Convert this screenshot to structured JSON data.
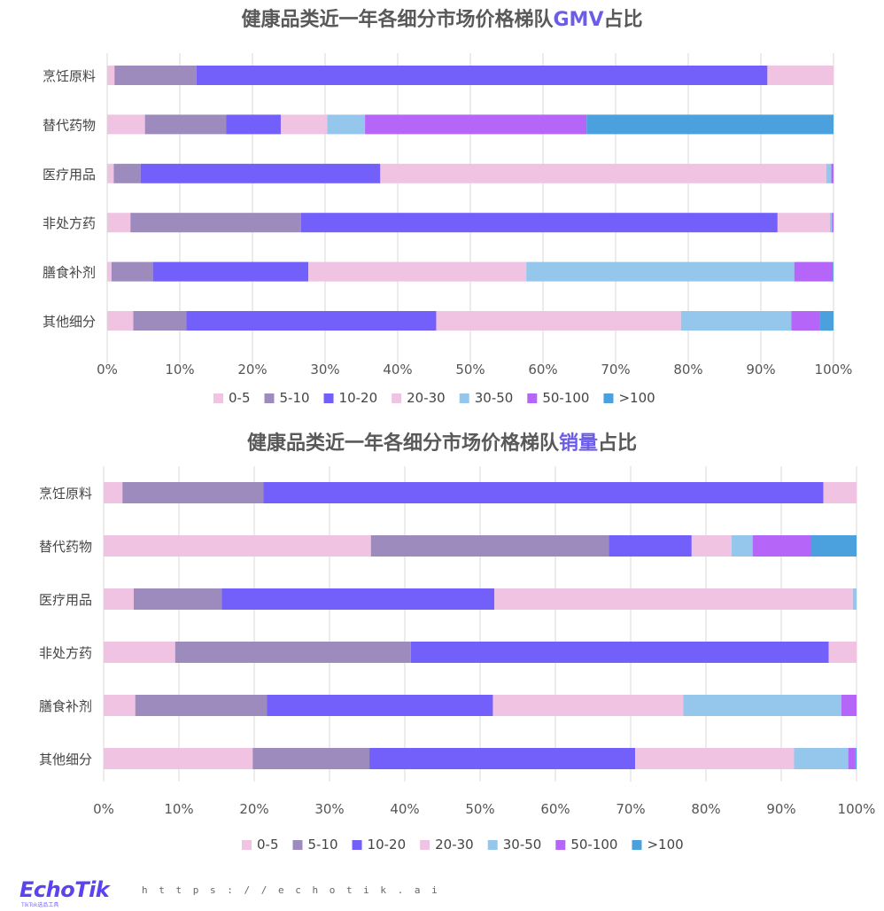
{
  "footer": {
    "brand": "EchoTik",
    "brand_sub": "TikTok选品工具",
    "url": "h t t p s : / / e c h o t i k . a i"
  },
  "chart_data": [
    {
      "type": "bar",
      "orientation": "horizontal",
      "stacked": "percent",
      "title_prefix": "健康品类近一年各细分市场价格梯队",
      "title_highlight": "GMV",
      "title_suffix": "占比",
      "categories": [
        "烹饪原料",
        "替代药物",
        "医疗用品",
        "非处方药",
        "膳食补剂",
        "其他细分"
      ],
      "series": [
        {
          "name": "0-5",
          "color": "#f0c3e3",
          "values": [
            1.0,
            5.2,
            0.9,
            3.2,
            0.6,
            3.6
          ]
        },
        {
          "name": "5-10",
          "color": "#9e8bbd",
          "values": [
            11.3,
            11.2,
            3.7,
            23.5,
            5.7,
            7.3
          ]
        },
        {
          "name": "10-20",
          "color": "#7360fb",
          "values": [
            78.6,
            7.5,
            33.0,
            65.6,
            21.4,
            34.4
          ]
        },
        {
          "name": "20-30",
          "color": "#f0c3e3",
          "values": [
            9.1,
            6.4,
            61.4,
            7.2,
            30.0,
            33.7
          ]
        },
        {
          "name": "30-50",
          "color": "#95c7ec",
          "values": [
            0,
            5.2,
            0.7,
            0.3,
            36.9,
            15.2
          ]
        },
        {
          "name": "50-100",
          "color": "#b565f7",
          "values": [
            0,
            30.5,
            0.3,
            0.2,
            5.3,
            3.9
          ]
        },
        {
          "name": ">100",
          "color": "#4aa1dd",
          "values": [
            0,
            34.0,
            0,
            0,
            0.1,
            1.9
          ]
        }
      ],
      "xlim": [
        0,
        100
      ],
      "xticks": [
        "0%",
        "10%",
        "20%",
        "30%",
        "40%",
        "50%",
        "60%",
        "70%",
        "80%",
        "90%",
        "100%"
      ],
      "grid": true,
      "legend": "bottom"
    },
    {
      "type": "bar",
      "orientation": "horizontal",
      "stacked": "percent",
      "title_prefix": "健康品类近一年各细分市场价格梯队",
      "title_highlight": "销量",
      "title_suffix": "占比",
      "categories": [
        "烹饪原料",
        "替代药物",
        "医疗用品",
        "非处方药",
        "膳食补剂",
        "其他细分"
      ],
      "series": [
        {
          "name": "0-5",
          "color": "#f0c3e3",
          "values": [
            2.5,
            35.5,
            4.0,
            9.5,
            4.2,
            19.8
          ]
        },
        {
          "name": "5-10",
          "color": "#9e8bbd",
          "values": [
            18.7,
            31.6,
            11.7,
            31.3,
            17.5,
            15.5
          ]
        },
        {
          "name": "10-20",
          "color": "#7360fb",
          "values": [
            74.4,
            11.0,
            36.2,
            55.5,
            30.0,
            35.3
          ]
        },
        {
          "name": "20-30",
          "color": "#f0c3e3",
          "values": [
            4.4,
            5.3,
            47.6,
            3.7,
            25.3,
            21.1
          ]
        },
        {
          "name": "30-50",
          "color": "#95c7ec",
          "values": [
            0,
            2.8,
            0.5,
            0,
            21.0,
            7.2
          ]
        },
        {
          "name": "50-100",
          "color": "#b565f7",
          "values": [
            0,
            7.8,
            0,
            0,
            2.0,
            0.9
          ]
        },
        {
          "name": ">100",
          "color": "#4aa1dd",
          "values": [
            0,
            6.0,
            0,
            0,
            0,
            0.2
          ]
        }
      ],
      "xlim": [
        0,
        100
      ],
      "xticks": [
        "0%",
        "10%",
        "20%",
        "30%",
        "40%",
        "50%",
        "60%",
        "70%",
        "80%",
        "90%",
        "100%"
      ],
      "grid": true,
      "legend": "bottom"
    }
  ]
}
